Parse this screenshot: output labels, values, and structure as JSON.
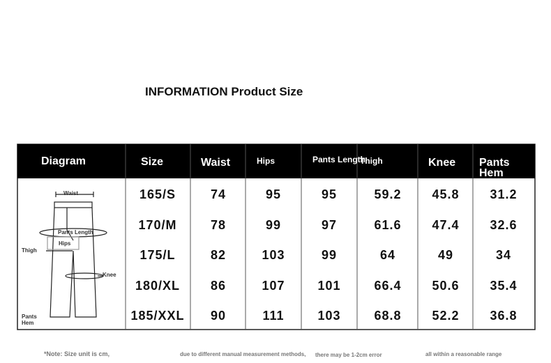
{
  "title": "INFORMATION Product Size",
  "table": {
    "header": [
      "Diagram",
      "Size",
      "Waist",
      "Hips",
      "Pants Length",
      "Thigh",
      "Knee",
      "Pants Hem"
    ],
    "rows": [
      [
        "165/S",
        74,
        95,
        95,
        59.2,
        45.8,
        31.2
      ],
      [
        "170/M",
        78,
        99,
        97,
        61.6,
        47.4,
        32.6
      ],
      [
        "175/L",
        82,
        103,
        99,
        64,
        49,
        34
      ],
      [
        "180/XL",
        86,
        107,
        101,
        66.4,
        50.6,
        35.4
      ],
      [
        "185/XXL",
        90,
        111,
        103,
        68.8,
        52.2,
        36.8
      ]
    ]
  },
  "diagram": {
    "labels": [
      "Waist",
      "Pants Length",
      "Hips",
      "Thigh",
      "Knee",
      "Pants Hem"
    ]
  },
  "note": [
    "*Note: Size unit is cm,",
    "due to different manual measurement methods,",
    "there may be 1-2cm error",
    "all within a reasonable range"
  ]
}
